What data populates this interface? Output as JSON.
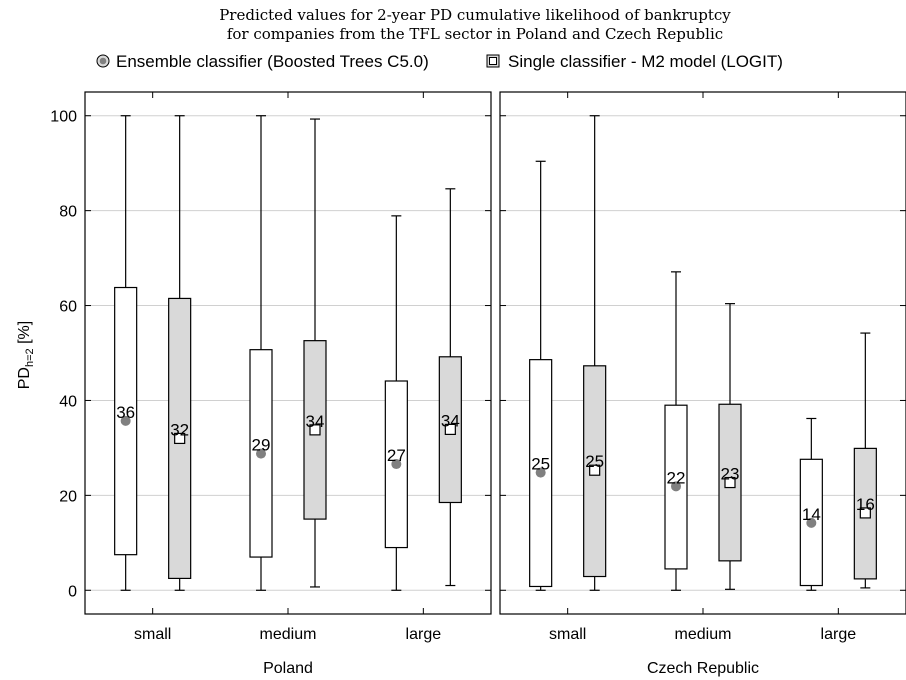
{
  "chart_data": {
    "type": "box",
    "title": "Predicted values for 2-year PD cumulative likelihood of bankruptcy",
    "subtitle": "for companies from the TFL sector in Poland and Czech Republic",
    "ylabel": "PD",
    "ylabel_sub": "h=2",
    "ylabel_unit": " [%]",
    "ylim": [
      -5,
      105
    ],
    "yticks": [
      0,
      20,
      40,
      60,
      80,
      100
    ],
    "grid": true,
    "legend_position": "top",
    "categories": [
      "small",
      "medium",
      "large"
    ],
    "series": [
      {
        "name": "Ensemble classifier (Boosted Trees C5.0)",
        "fill": "#ffffff",
        "marker": "circle",
        "marker_color": "#808080"
      },
      {
        "name": "Single classifier - M2 model (LOGIT)",
        "fill": "#d9d9d9",
        "marker": "square",
        "marker_color": "#ffffff"
      }
    ],
    "panels": [
      {
        "name": "Poland",
        "groups": [
          {
            "category": "small",
            "boxes": [
              {
                "min": 0,
                "q1": 7.5,
                "q3": 63.8,
                "max": 100,
                "mean": 35.7,
                "label": "36"
              },
              {
                "min": 0,
                "q1": 2.5,
                "q3": 61.5,
                "max": 100,
                "mean": 32,
                "label": "32"
              }
            ]
          },
          {
            "category": "medium",
            "boxes": [
              {
                "min": 0,
                "q1": 7,
                "q3": 50.7,
                "max": 100,
                "mean": 28.8,
                "label": "29"
              },
              {
                "min": 0.7,
                "q1": 15,
                "q3": 52.6,
                "max": 99.3,
                "mean": 33.8,
                "label": "34"
              }
            ]
          },
          {
            "category": "large",
            "boxes": [
              {
                "min": 0,
                "q1": 9,
                "q3": 44.1,
                "max": 78.9,
                "mean": 26.6,
                "label": "27"
              },
              {
                "min": 1,
                "q1": 18.5,
                "q3": 49.2,
                "max": 84.6,
                "mean": 33.9,
                "label": "34"
              }
            ]
          }
        ]
      },
      {
        "name": "Czech Republic",
        "groups": [
          {
            "category": "small",
            "boxes": [
              {
                "min": 0,
                "q1": 0.8,
                "q3": 48.6,
                "max": 90.4,
                "mean": 24.8,
                "label": "25"
              },
              {
                "min": 0,
                "q1": 2.9,
                "q3": 47.3,
                "max": 100,
                "mean": 25.3,
                "label": "25"
              }
            ]
          },
          {
            "category": "medium",
            "boxes": [
              {
                "min": 0,
                "q1": 4.5,
                "q3": 39,
                "max": 67.1,
                "mean": 21.9,
                "label": "22"
              },
              {
                "min": 0.2,
                "q1": 6.2,
                "q3": 39.2,
                "max": 60.4,
                "mean": 22.7,
                "label": "23"
              }
            ]
          },
          {
            "category": "large",
            "boxes": [
              {
                "min": 0,
                "q1": 1,
                "q3": 27.6,
                "max": 36.2,
                "mean": 14.2,
                "label": "14"
              },
              {
                "min": 0.5,
                "q1": 2.4,
                "q3": 29.9,
                "max": 54.2,
                "mean": 16.3,
                "label": "16"
              }
            ]
          }
        ]
      }
    ]
  }
}
